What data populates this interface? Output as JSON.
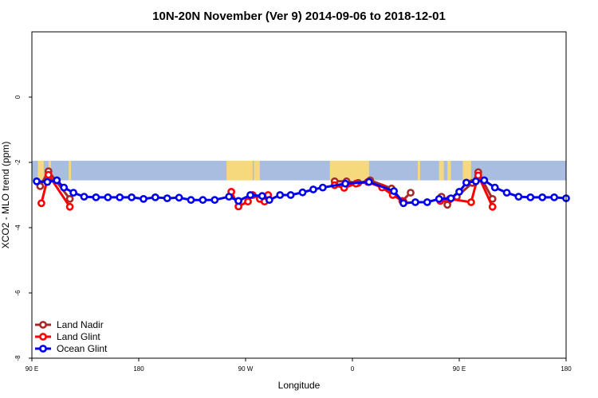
{
  "chart_data": {
    "type": "line",
    "title": "10N-20N November (Ver 9)   2014-09-06 to 2018-12-01",
    "xlabel": "Longitude",
    "ylabel": "XCO2 - MLO trend (ppm)",
    "xlim": [
      90,
      540
    ],
    "ylim": [
      -8,
      2
    ],
    "x_ticks": [
      {
        "value": 90,
        "label": "90 E"
      },
      {
        "value": 180,
        "label": "180"
      },
      {
        "value": 270,
        "label": "90 W"
      },
      {
        "value": 360,
        "label": "0"
      },
      {
        "value": 450,
        "label": "90 E"
      },
      {
        "value": 540,
        "label": "180"
      }
    ],
    "y_ticks": [
      {
        "value": 0,
        "label": "0"
      },
      {
        "value": -2,
        "label": "-2"
      },
      {
        "value": -4,
        "label": "-4"
      },
      {
        "value": -6,
        "label": "-6"
      },
      {
        "value": -8,
        "label": "-8"
      }
    ],
    "map_band": {
      "ymin": -2.55,
      "ymax": -1.95,
      "ocean_color": "#a8bde0",
      "land_color": "#f5d97c"
    },
    "land_ranges": [
      [
        95,
        100
      ],
      [
        104,
        106
      ],
      [
        121,
        123
      ],
      [
        254,
        276
      ],
      [
        277,
        282
      ],
      [
        341,
        374
      ],
      [
        415,
        417
      ],
      [
        433,
        437
      ],
      [
        440,
        443
      ],
      [
        453,
        460
      ]
    ],
    "legend": {
      "position": "bottom-left"
    },
    "series": [
      {
        "name": "Land Nadir",
        "color": "#a52a2a",
        "segments": [
          [
            [
              97,
              -2.73
            ],
            [
              104,
              -2.27
            ],
            [
              122,
              -3.12
            ]
          ],
          [
            [
              345,
              -2.58
            ],
            [
              355,
              -2.58
            ],
            [
              365,
              -2.63
            ],
            [
              375,
              -2.55
            ],
            [
              393,
              -2.8
            ],
            [
              402,
              -3.18
            ],
            [
              409,
              -2.93
            ]
          ],
          [
            [
              435,
              -3.05
            ],
            [
              440,
              -3.3
            ],
            [
              448,
              -3.05
            ],
            [
              461,
              -2.63
            ],
            [
              466,
              -2.3
            ],
            [
              478,
              -3.12
            ]
          ]
        ]
      },
      {
        "name": "Land Glint",
        "color": "#ff0000",
        "segments": [
          [
            [
              98,
              -3.25
            ],
            [
              104,
              -2.38
            ],
            [
              122,
              -3.36
            ]
          ],
          [
            [
              258,
              -2.9
            ],
            [
              264,
              -3.35
            ],
            [
              272,
              -3.2
            ],
            [
              276,
              -3.0
            ],
            [
              282,
              -3.12
            ],
            [
              286,
              -3.2
            ],
            [
              289,
              -3.0
            ]
          ],
          [
            [
              345,
              -2.7
            ],
            [
              353,
              -2.78
            ],
            [
              363,
              -2.65
            ],
            [
              373,
              -2.6
            ],
            [
              385,
              -2.77
            ],
            [
              394,
              -3.0
            ],
            [
              403,
              -3.2
            ]
          ],
          [
            [
              434,
              -3.18
            ],
            [
              442,
              -3.12
            ],
            [
              460,
              -3.22
            ],
            [
              466,
              -2.4
            ],
            [
              478,
              -3.36
            ]
          ]
        ]
      },
      {
        "name": "Ocean Glint",
        "color": "#0000ee",
        "segments": [
          [
            [
              94,
              -2.58
            ],
            [
              103,
              -2.6
            ],
            [
              111,
              -2.55
            ],
            [
              117,
              -2.77
            ],
            [
              125,
              -2.93
            ],
            [
              134,
              -3.05
            ],
            [
              144,
              -3.07
            ],
            [
              154,
              -3.07
            ],
            [
              164,
              -3.07
            ],
            [
              174,
              -3.07
            ],
            [
              184,
              -3.12
            ],
            [
              194,
              -3.07
            ],
            [
              204,
              -3.1
            ],
            [
              214,
              -3.08
            ],
            [
              224,
              -3.15
            ],
            [
              234,
              -3.15
            ],
            [
              244,
              -3.15
            ],
            [
              256,
              -3.05
            ],
            [
              264,
              -3.18
            ],
            [
              274,
              -3.0
            ],
            [
              284,
              -3.03
            ],
            [
              290,
              -3.15
            ],
            [
              299,
              -3.0
            ],
            [
              308,
              -3.0
            ],
            [
              318,
              -2.92
            ],
            [
              327,
              -2.83
            ],
            [
              335,
              -2.77
            ],
            [
              354,
              -2.65
            ],
            [
              374,
              -2.6
            ],
            [
              395,
              -2.88
            ],
            [
              403,
              -3.25
            ],
            [
              413,
              -3.22
            ],
            [
              423,
              -3.22
            ],
            [
              433,
              -3.12
            ],
            [
              443,
              -3.1
            ],
            [
              450,
              -2.9
            ],
            [
              456,
              -2.62
            ],
            [
              464,
              -2.58
            ],
            [
              471,
              -2.55
            ],
            [
              480,
              -2.77
            ],
            [
              490,
              -2.93
            ],
            [
              500,
              -3.05
            ],
            [
              510,
              -3.07
            ],
            [
              520,
              -3.07
            ],
            [
              530,
              -3.07
            ],
            [
              540,
              -3.1
            ]
          ]
        ]
      }
    ]
  }
}
